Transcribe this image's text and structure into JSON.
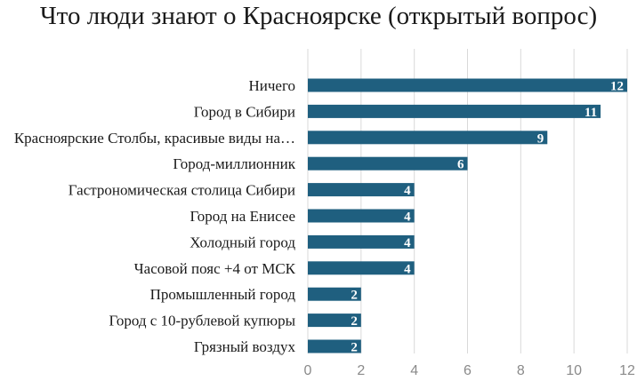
{
  "chart_data": {
    "type": "bar",
    "orientation": "horizontal",
    "title": "Что люди знают о Красноярске (открытый вопрос)",
    "xlabel": "",
    "ylabel": "",
    "categories": [
      "Ничего",
      "Город в Сибири",
      "Красноярские Столбы, красивые виды на…",
      "Город-миллионник",
      "Гастрономическая столица Сибири",
      "Город на Енисее",
      "Холодный город",
      "Часовой пояс +4 от МСК",
      "Промышленный город",
      "Город с 10-рублевой купюры",
      "Грязный воздух"
    ],
    "values": [
      12,
      11,
      9,
      6,
      4,
      4,
      4,
      4,
      2,
      2,
      2
    ],
    "xlim": [
      0,
      12
    ],
    "ticks": [
      "0",
      "2",
      "4",
      "6",
      "8",
      "10",
      "12"
    ],
    "data_labels": true,
    "grid": "vertical",
    "legend": "none",
    "colors": {
      "bar": "#1f5f7f",
      "grid": "#d9d9d9",
      "value_label": "#ffffff",
      "tick_label": "#8a8a8a"
    }
  }
}
